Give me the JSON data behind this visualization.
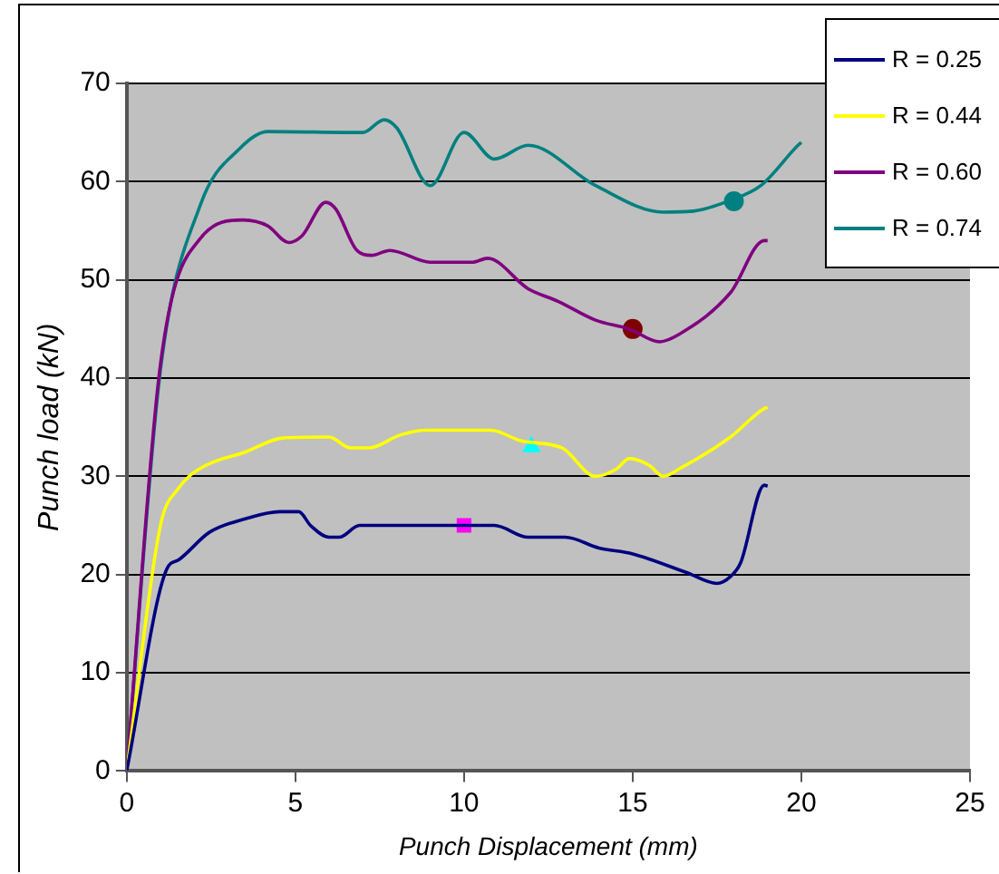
{
  "chart_data": {
    "type": "line",
    "xlabel": "Punch Displacement (mm)",
    "ylabel": "Punch load (kN)",
    "xlim": [
      0,
      25
    ],
    "xticks": [
      0,
      5,
      10,
      15,
      20,
      25
    ],
    "ylim": [
      0,
      70
    ],
    "yticks": [
      0,
      10,
      20,
      30,
      40,
      50,
      60,
      70
    ],
    "grid": "y",
    "legend": "top right",
    "marker": "none",
    "series": [
      {
        "name": "R = 0.25",
        "color": "#000080",
        "x": [
          0,
          1.18,
          1.54,
          2.45,
          3.54,
          4.54,
          5.1,
          5.45,
          6.0,
          6.3,
          6.9,
          10.9,
          11.9,
          13.0,
          14.0,
          15.0,
          16.6,
          17.5,
          17.9,
          18.2,
          18.9,
          19
        ],
        "values": [
          0,
          20.5,
          21.5,
          24.3,
          25.7,
          26.4,
          26.4,
          25,
          23.8,
          23.8,
          25,
          25,
          23.8,
          23.8,
          22.7,
          22.1,
          20.2,
          19.1,
          19.8,
          21.2,
          29.1,
          29
        ]
      },
      {
        "name": "R = 0.44",
        "color": "#ffff00",
        "x": [
          0,
          1.0,
          1.54,
          2.18,
          3.54,
          4.63,
          6.0,
          6.63,
          7.2,
          8.1,
          8.9,
          10.8,
          11.7,
          12.9,
          13.9,
          14.5,
          14.9,
          15.5,
          15.9,
          16.4,
          17.9,
          18.9,
          19
        ],
        "values": [
          0,
          25,
          28.8,
          30.8,
          32.5,
          33.9,
          34,
          32.9,
          32.9,
          34.2,
          34.7,
          34.7,
          33.6,
          32.9,
          30,
          30.7,
          31.8,
          31.1,
          30,
          30.8,
          34,
          36.9,
          37
        ]
      },
      {
        "name": "R = 0.60",
        "color": "#800080",
        "x": [
          0,
          1.0,
          2.18,
          3.45,
          4.18,
          4.8,
          5.2,
          5.9,
          6.2,
          6.8,
          7.26,
          7.8,
          9.0,
          10.25,
          10.7,
          11.9,
          12.8,
          13.9,
          14.9,
          15.8,
          16.4,
          17.9,
          18.9,
          19
        ],
        "values": [
          0,
          41.4,
          54.2,
          56.1,
          55.5,
          53.8,
          54.5,
          57.9,
          57.2,
          53.1,
          52.5,
          53,
          51.8,
          51.8,
          52.2,
          49.1,
          47.8,
          45.9,
          45,
          43.7,
          44.5,
          48.7,
          54,
          54
        ]
      },
      {
        "name": "R = 0.74",
        "color": "#008080",
        "x": [
          0,
          1.0,
          2.18,
          3.36,
          4.18,
          7.0,
          7.63,
          8.0,
          9.0,
          10.0,
          10.9,
          11.9,
          13.9,
          15.9,
          16.8,
          17.9,
          18.8,
          19.9,
          20
        ],
        "values": [
          0,
          40.8,
          57.6,
          63.4,
          65.1,
          65,
          66.3,
          65.5,
          59.6,
          65,
          62.3,
          63.7,
          59.6,
          56.9,
          57,
          58.1,
          59.6,
          63.7,
          64
        ]
      },
      {
        "type": "scatter",
        "color": "#ff00ff",
        "marker": "square",
        "x": [
          10
        ],
        "values": [
          25
        ]
      },
      {
        "type": "scatter",
        "color": "#00ffff",
        "marker": "triangle",
        "x": [
          12
        ],
        "values": [
          33
        ]
      },
      {
        "type": "scatter",
        "color": "#800000",
        "marker": "circle",
        "x": [
          15
        ],
        "values": [
          45
        ]
      },
      {
        "type": "scatter",
        "color": "#008080",
        "marker": "circle",
        "x": [
          18
        ],
        "values": [
          58
        ]
      }
    ]
  }
}
